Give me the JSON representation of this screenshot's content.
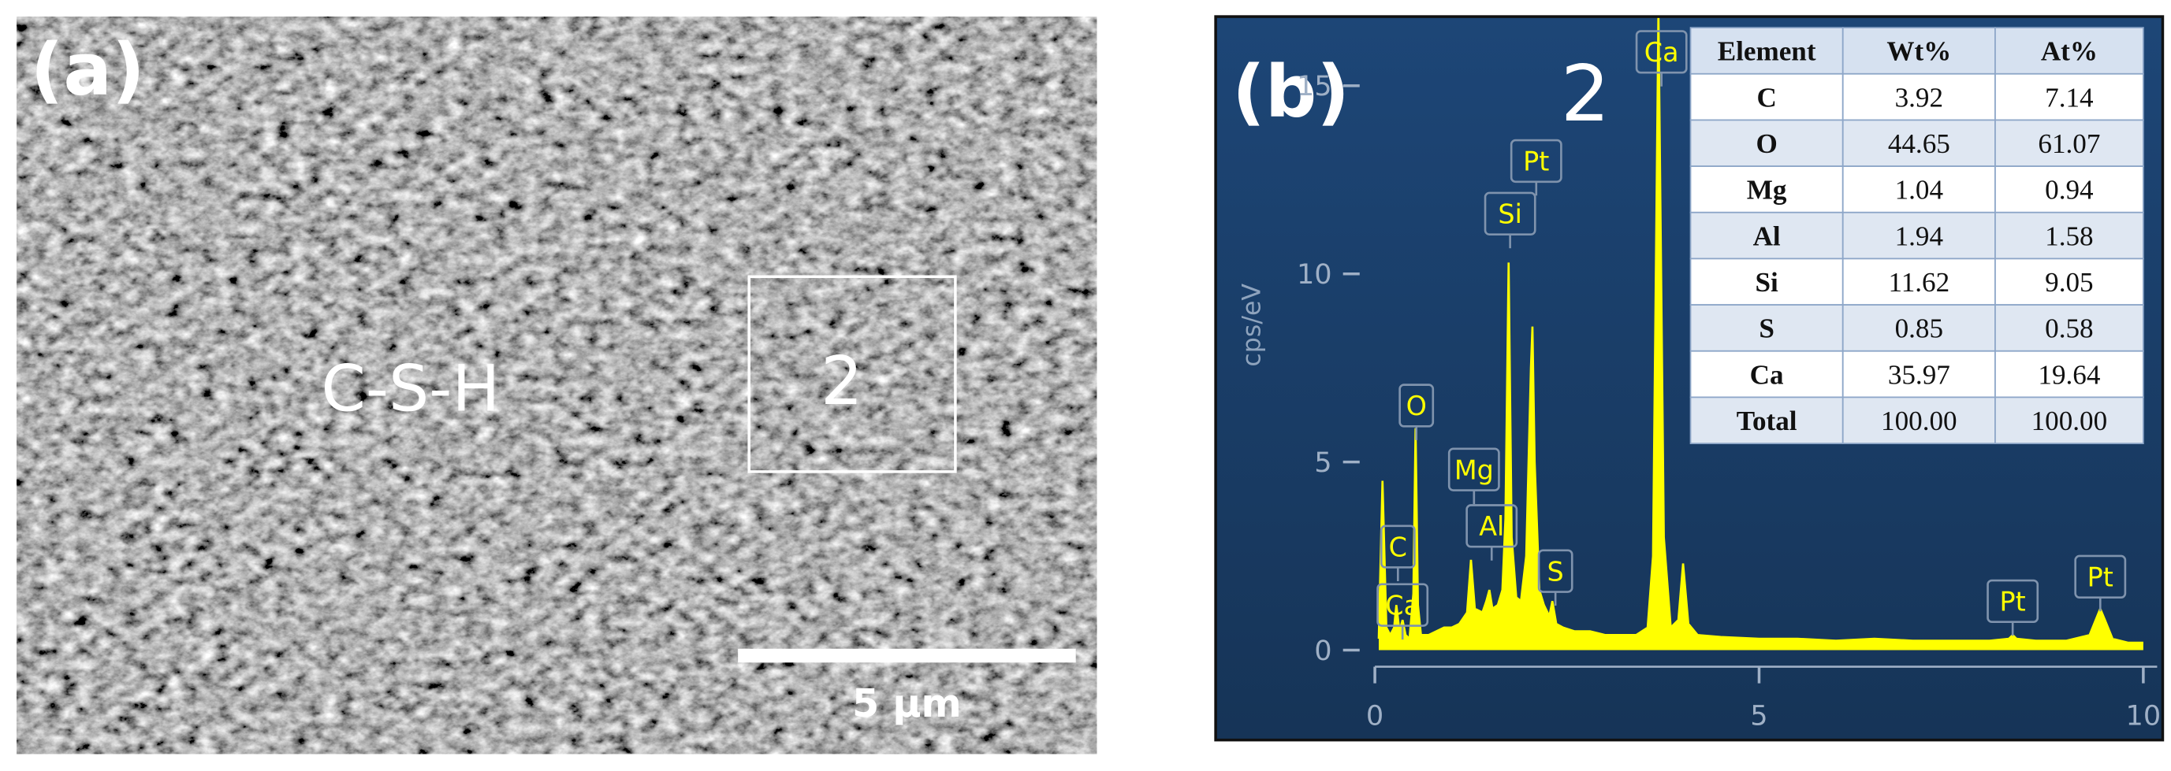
{
  "panel_a": {
    "label": "(a)",
    "phase": "C-S-H",
    "spot": "2",
    "scale_bar": "5 µm"
  },
  "chart_data": {
    "type": "line",
    "panel_label": "(b)",
    "spot": "2",
    "ylabel": "cps/eV",
    "xlim": [
      0,
      10
    ],
    "xticks": [
      0,
      5,
      10
    ],
    "ylim": [
      0,
      16.25
    ],
    "yticks": [
      0,
      5,
      10,
      15
    ],
    "series": [
      {
        "color": "#ffff00",
        "x": [
          0.05,
          0.1,
          0.15,
          0.2,
          0.25,
          0.28,
          0.32,
          0.36,
          0.4,
          0.45,
          0.5,
          0.53,
          0.56,
          0.6,
          0.7,
          0.8,
          0.9,
          1.0,
          1.1,
          1.2,
          1.25,
          1.3,
          1.4,
          1.45,
          1.49,
          1.53,
          1.6,
          1.66,
          1.7,
          1.74,
          1.78,
          1.84,
          1.9,
          1.97,
          2.03,
          2.05,
          2.08,
          2.14,
          2.2,
          2.27,
          2.31,
          2.36,
          2.45,
          2.6,
          2.8,
          3.0,
          3.2,
          3.4,
          3.55,
          3.62,
          3.69,
          3.76,
          3.85,
          3.95,
          4.01,
          4.08,
          4.2,
          4.5,
          5.0,
          5.5,
          6.0,
          6.5,
          7.0,
          7.5,
          8.0,
          8.25,
          8.3,
          8.35,
          8.6,
          9.0,
          9.3,
          9.4,
          9.44,
          9.5,
          9.6,
          9.8,
          10.0
        ],
        "values": [
          0.3,
          4.5,
          0.6,
          0.4,
          0.6,
          1.2,
          0.5,
          0.8,
          0.4,
          0.3,
          1.5,
          5.9,
          1.2,
          0.4,
          0.4,
          0.5,
          0.6,
          0.6,
          0.7,
          1.0,
          2.4,
          1.1,
          1.0,
          1.3,
          1.6,
          1.1,
          1.2,
          1.6,
          3.5,
          10.3,
          3.0,
          1.4,
          1.3,
          2.5,
          7.5,
          8.6,
          5.0,
          1.6,
          1.2,
          0.9,
          1.3,
          0.7,
          0.6,
          0.5,
          0.5,
          0.4,
          0.4,
          0.4,
          0.6,
          2.5,
          17,
          3,
          0.6,
          0.8,
          2.3,
          0.7,
          0.4,
          0.35,
          0.3,
          0.3,
          0.25,
          0.3,
          0.25,
          0.25,
          0.25,
          0.3,
          0.4,
          0.3,
          0.25,
          0.25,
          0.4,
          0.9,
          1.1,
          0.8,
          0.3,
          0.2,
          0.2
        ]
      }
    ],
    "annotations": [
      {
        "text": "C",
        "x": 0.3,
        "y": 2.75
      },
      {
        "text": "Ca",
        "x": 0.36,
        "y": 1.2
      },
      {
        "text": "O",
        "x": 0.54,
        "y": 6.5
      },
      {
        "text": "Mg",
        "x": 1.29,
        "y": 4.8
      },
      {
        "text": "Al",
        "x": 1.52,
        "y": 3.3
      },
      {
        "text": "Si",
        "x": 1.76,
        "y": 11.6
      },
      {
        "text": "Pt",
        "x": 2.1,
        "y": 13
      },
      {
        "text": "S",
        "x": 2.35,
        "y": 2.1
      },
      {
        "text": "Ca",
        "x": 3.73,
        "y": 15.9
      },
      {
        "text": "Pt",
        "x": 8.3,
        "y": 1.3
      },
      {
        "text": "Pt",
        "x": 9.44,
        "y": 1.95
      }
    ]
  },
  "table": {
    "columns": [
      "Element",
      "Wt%",
      "At%"
    ],
    "rows": [
      [
        "C",
        "3.92",
        "7.14"
      ],
      [
        "O",
        "44.65",
        "61.07"
      ],
      [
        "Mg",
        "1.04",
        "0.94"
      ],
      [
        "Al",
        "1.94",
        "1.58"
      ],
      [
        "Si",
        "11.62",
        "9.05"
      ],
      [
        "S",
        "0.85",
        "0.58"
      ],
      [
        "Ca",
        "35.97",
        "19.64"
      ],
      [
        "Total",
        "100.00",
        "100.00"
      ]
    ]
  }
}
